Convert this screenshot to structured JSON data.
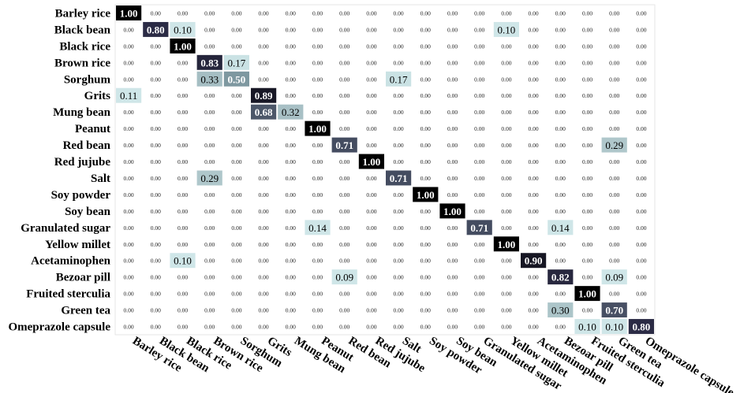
{
  "chart_data": {
    "type": "heatmap",
    "title": "",
    "row_labels": [
      "Barley rice",
      "Black bean",
      "Black rice",
      "Brown rice",
      "Sorghum",
      "Grits",
      "Mung bean",
      "Peanut",
      "Red bean",
      "Red jujube",
      "Salt",
      "Soy powder",
      "Soy bean",
      "Granulated sugar",
      "Yellow millet",
      "Acetaminophen",
      "Bezoar pill",
      "Fruited sterculia",
      "Green tea",
      "Omeprazole capsule"
    ],
    "col_labels": [
      "Barley rice",
      "Black bean",
      "Black rice",
      "Brown rice",
      "Sorghum",
      "Grits",
      "Mung bean",
      "Peanut",
      "Red bean",
      "Red jujube",
      "Salt",
      "Soy powder",
      "Soy bean",
      "Granulated sugar",
      "Yellow millet",
      "Acetaminophen",
      "Bezoar pill",
      "Fruited sterculia",
      "Green tea",
      "Omeprazole capsule"
    ],
    "values": [
      [
        1.0,
        0,
        0,
        0,
        0,
        0,
        0,
        0,
        0,
        0,
        0,
        0,
        0,
        0,
        0,
        0,
        0,
        0,
        0,
        0
      ],
      [
        0,
        0.8,
        0.1,
        0,
        0,
        0,
        0,
        0,
        0,
        0,
        0,
        0,
        0,
        0,
        0.1,
        0,
        0,
        0,
        0,
        0
      ],
      [
        0,
        0,
        1.0,
        0,
        0,
        0,
        0,
        0,
        0,
        0,
        0,
        0,
        0,
        0,
        0,
        0,
        0,
        0,
        0,
        0
      ],
      [
        0,
        0,
        0,
        0.83,
        0.17,
        0,
        0,
        0,
        0,
        0,
        0,
        0,
        0,
        0,
        0,
        0,
        0,
        0,
        0,
        0
      ],
      [
        0,
        0,
        0,
        0.33,
        0.5,
        0,
        0,
        0,
        0,
        0,
        0.17,
        0,
        0,
        0,
        0,
        0,
        0,
        0,
        0,
        0
      ],
      [
        0.11,
        0,
        0,
        0,
        0,
        0.89,
        0,
        0,
        0,
        0,
        0,
        0,
        0,
        0,
        0,
        0,
        0,
        0,
        0,
        0
      ],
      [
        0,
        0,
        0,
        0,
        0,
        0.68,
        0.32,
        0,
        0,
        0,
        0,
        0,
        0,
        0,
        0,
        0,
        0,
        0,
        0,
        0
      ],
      [
        0,
        0,
        0,
        0,
        0,
        0,
        0,
        1.0,
        0,
        0,
        0,
        0,
        0,
        0,
        0,
        0,
        0,
        0,
        0,
        0
      ],
      [
        0,
        0,
        0,
        0,
        0,
        0,
        0,
        0,
        0.71,
        0,
        0,
        0,
        0,
        0,
        0,
        0,
        0,
        0,
        0.29,
        0
      ],
      [
        0,
        0,
        0,
        0,
        0,
        0,
        0,
        0,
        0,
        1.0,
        0,
        0,
        0,
        0,
        0,
        0,
        0,
        0,
        0,
        0
      ],
      [
        0,
        0,
        0,
        0.29,
        0,
        0,
        0,
        0,
        0,
        0,
        0.71,
        0,
        0,
        0,
        0,
        0,
        0,
        0,
        0,
        0
      ],
      [
        0,
        0,
        0,
        0,
        0,
        0,
        0,
        0,
        0,
        0,
        0,
        1.0,
        0,
        0,
        0,
        0,
        0,
        0,
        0,
        0
      ],
      [
        0,
        0,
        0,
        0,
        0,
        0,
        0,
        0,
        0,
        0,
        0,
        0,
        1.0,
        0,
        0,
        0,
        0,
        0,
        0,
        0
      ],
      [
        0,
        0,
        0,
        0,
        0,
        0,
        0,
        0.14,
        0,
        0,
        0,
        0,
        0,
        0.71,
        0,
        0,
        0.14,
        0,
        0,
        0
      ],
      [
        0,
        0,
        0,
        0,
        0,
        0,
        0,
        0,
        0,
        0,
        0,
        0,
        0,
        0,
        1.0,
        0,
        0,
        0,
        0,
        0
      ],
      [
        0,
        0,
        0.1,
        0,
        0,
        0,
        0,
        0,
        0,
        0,
        0,
        0,
        0,
        0,
        0,
        0.9,
        0,
        0,
        0,
        0
      ],
      [
        0,
        0,
        0,
        0,
        0,
        0,
        0,
        0,
        0.09,
        0,
        0,
        0,
        0,
        0,
        0,
        0,
        0.82,
        0,
        0.09,
        0
      ],
      [
        0,
        0,
        0,
        0,
        0,
        0,
        0,
        0,
        0,
        0,
        0,
        0,
        0,
        0,
        0,
        0,
        0,
        1.0,
        0,
        0
      ],
      [
        0,
        0,
        0,
        0,
        0,
        0,
        0,
        0,
        0,
        0,
        0,
        0,
        0,
        0,
        0,
        0,
        0.3,
        0,
        0.7,
        0
      ],
      [
        0,
        0,
        0,
        0,
        0,
        0,
        0,
        0,
        0,
        0,
        0,
        0,
        0,
        0,
        0,
        0,
        0,
        0.1,
        0.1,
        0.8
      ]
    ],
    "value_format": "0.00",
    "color_scale": {
      "low": "#ffffff",
      "light": "#cfe6e8",
      "mid": "#7e98a0",
      "dark": "#2b2b45",
      "max": "#000000"
    },
    "grid": false,
    "legend": "none"
  }
}
